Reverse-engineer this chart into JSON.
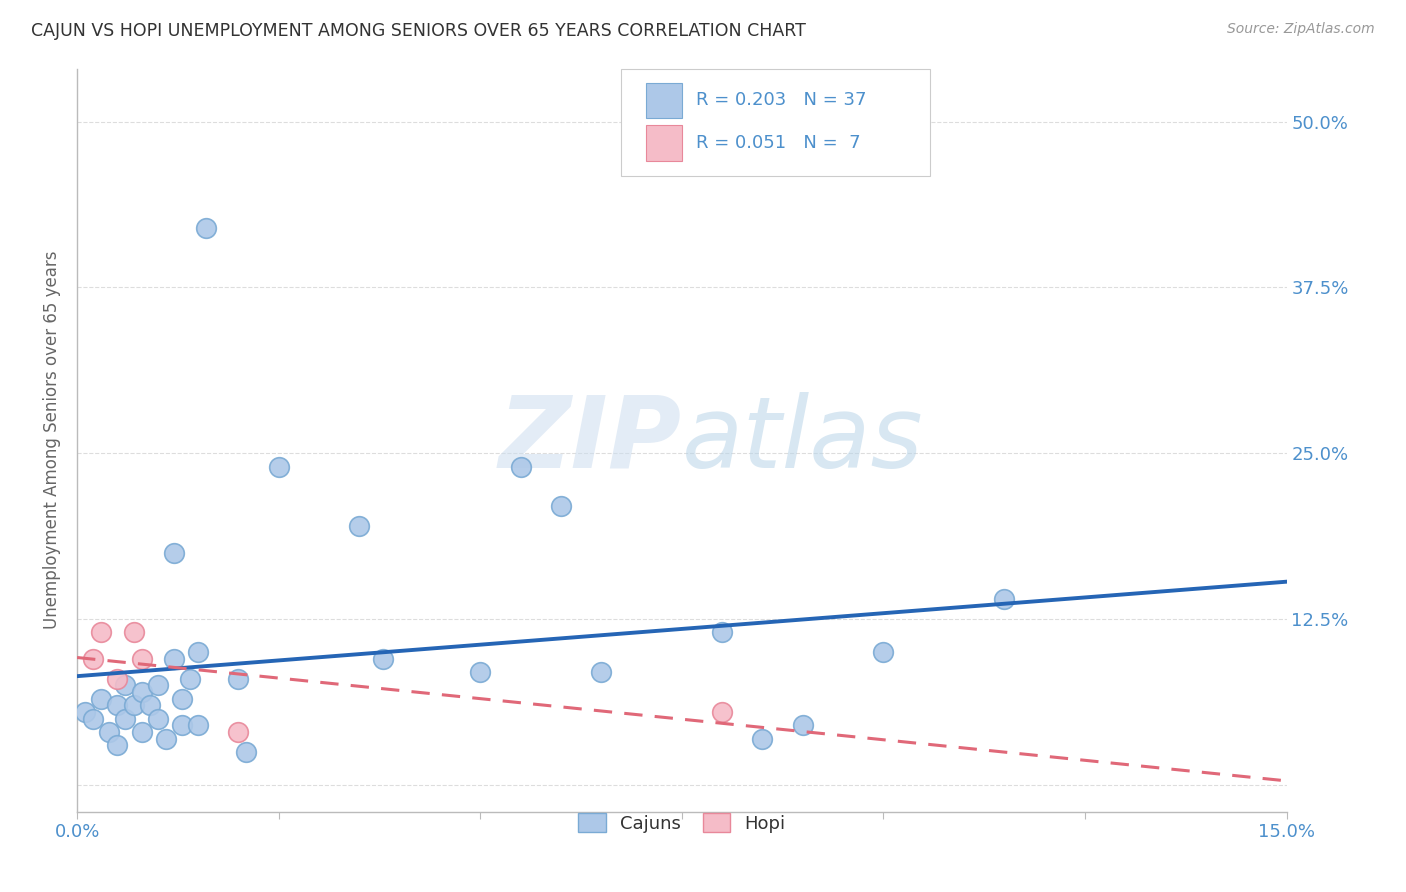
{
  "title": "CAJUN VS HOPI UNEMPLOYMENT AMONG SENIORS OVER 65 YEARS CORRELATION CHART",
  "source": "Source: ZipAtlas.com",
  "ylabel_label": "Unemployment Among Seniors over 65 years",
  "xlim": [
    0.0,
    0.15
  ],
  "ylim": [
    -0.02,
    0.54
  ],
  "cajuns_R": 0.203,
  "cajuns_N": 37,
  "hopi_R": 0.051,
  "hopi_N": 7,
  "cajuns_color": "#adc8e8",
  "cajuns_edge": "#7aaad4",
  "hopi_color": "#f5bcc8",
  "hopi_edge": "#e8889a",
  "trendline_cajuns_color": "#2565b5",
  "trendline_hopi_color": "#e06878",
  "title_color": "#333333",
  "source_color": "#999999",
  "axis_color": "#bbbbbb",
  "label_color": "#4d90cc",
  "grid_color": "#dddddd",
  "watermark_zip": "ZIP",
  "watermark_atlas": "atlas",
  "cajuns_x": [
    0.001,
    0.002,
    0.003,
    0.004,
    0.005,
    0.005,
    0.006,
    0.006,
    0.007,
    0.008,
    0.008,
    0.009,
    0.01,
    0.01,
    0.011,
    0.012,
    0.012,
    0.013,
    0.013,
    0.014,
    0.015,
    0.015,
    0.016,
    0.02,
    0.021,
    0.025,
    0.035,
    0.038,
    0.05,
    0.055,
    0.06,
    0.065,
    0.08,
    0.085,
    0.09,
    0.1,
    0.115
  ],
  "cajuns_y": [
    0.055,
    0.05,
    0.065,
    0.04,
    0.06,
    0.03,
    0.075,
    0.05,
    0.06,
    0.04,
    0.07,
    0.06,
    0.05,
    0.075,
    0.035,
    0.175,
    0.095,
    0.065,
    0.045,
    0.08,
    0.045,
    0.1,
    0.42,
    0.08,
    0.025,
    0.24,
    0.195,
    0.095,
    0.085,
    0.24,
    0.21,
    0.085,
    0.115,
    0.035,
    0.045,
    0.1,
    0.14
  ],
  "hopi_x": [
    0.002,
    0.003,
    0.005,
    0.007,
    0.008,
    0.02,
    0.08
  ],
  "hopi_y": [
    0.095,
    0.115,
    0.08,
    0.115,
    0.095,
    0.04,
    0.055
  ],
  "legend_entries": [
    "Cajuns",
    "Hopi"
  ],
  "ytick_positions": [
    0.0,
    0.125,
    0.25,
    0.375,
    0.5
  ],
  "ytick_labels": [
    "",
    "12.5%",
    "25.0%",
    "37.5%",
    "50.0%"
  ],
  "xtick_positions": [
    0.0,
    0.025,
    0.05,
    0.075,
    0.1,
    0.125,
    0.15
  ],
  "xtick_labels": [
    "0.0%",
    "",
    "",
    "",
    "",
    "",
    "15.0%"
  ],
  "legend_r_cajuns": "R = 0.203",
  "legend_n_cajuns": "N = 37",
  "legend_r_hopi": "R = 0.051",
  "legend_n_hopi": "N =  7"
}
